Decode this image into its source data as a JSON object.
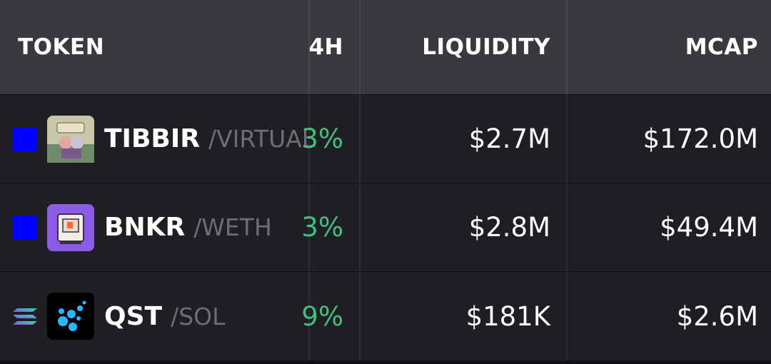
{
  "table": {
    "headers": [
      "TOKEN",
      "4H",
      "LIQUIDITY",
      "MCAP"
    ],
    "rows": [
      {
        "symbol": "TIBBIR",
        "quote": "/VIRTUAL",
        "change": "3%",
        "liquidity": "$2.7M",
        "mcap": "$172.0M"
      },
      {
        "symbol": "BNKR",
        "quote": "/WETH",
        "change": "3%",
        "liquidity": "$2.8M",
        "mcap": "$49.4M"
      },
      {
        "symbol": "QST",
        "quote": "/SOL",
        "change": "9%",
        "liquidity": "$181K",
        "mcap": "$2.6M"
      }
    ]
  }
}
